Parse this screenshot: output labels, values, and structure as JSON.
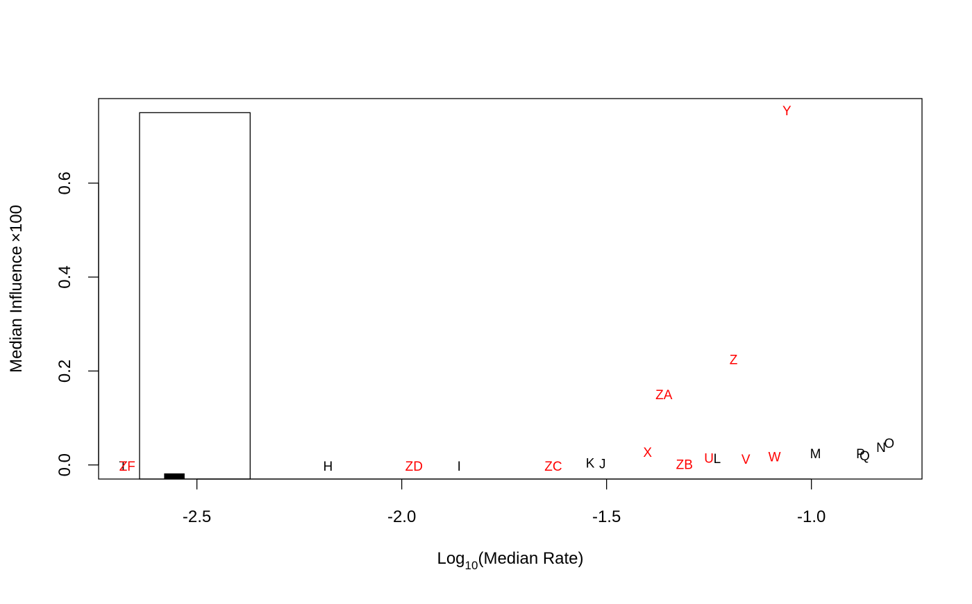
{
  "chart_data": {
    "type": "scatter",
    "title": "",
    "xlabel": {
      "prefix": "Log",
      "subscript": "10",
      "suffix": "(Median Rate)"
    },
    "ylabel": {
      "prefix": "Median Influence",
      "times": "×",
      "suffix": "100"
    },
    "xlim": [
      -2.74,
      -0.73
    ],
    "ylim": [
      -0.03,
      0.78
    ],
    "x_ticks": [
      -2.5,
      -2.0,
      -1.5,
      -1.0
    ],
    "x_tick_labels": [
      "-2.5",
      "-2.0",
      "-1.5",
      "-1.0"
    ],
    "y_ticks": [
      0.0,
      0.2,
      0.4,
      0.6
    ],
    "y_tick_labels": [
      "0.0",
      "0.2",
      "0.4",
      "0.6"
    ],
    "grid": false,
    "colors": {
      "black": "#000000",
      "red": "#ff0000"
    },
    "inset_histogram": {
      "x_range": [
        -2.64,
        -2.37
      ],
      "y_range": [
        -0.03,
        0.75
      ],
      "bar_fill": "#ffffff",
      "bar_stroke": "#000000",
      "marker": {
        "x_range": [
          -2.58,
          -2.53
        ],
        "y_range": [
          -0.03,
          -0.018
        ],
        "fill": "#000000"
      }
    },
    "points": [
      {
        "label": "T",
        "x": -2.68,
        "y": -0.002,
        "color": "#000000"
      },
      {
        "label": "ZF",
        "x": -2.67,
        "y": -0.002,
        "color": "#ff0000"
      },
      {
        "label": "H",
        "x": -2.18,
        "y": -0.002,
        "color": "#000000"
      },
      {
        "label": "ZD",
        "x": -1.97,
        "y": -0.002,
        "color": "#ff0000"
      },
      {
        "label": "I",
        "x": -1.86,
        "y": -0.002,
        "color": "#000000"
      },
      {
        "label": "ZC",
        "x": -1.63,
        "y": -0.002,
        "color": "#ff0000"
      },
      {
        "label": "K",
        "x": -1.54,
        "y": 0.005,
        "color": "#000000"
      },
      {
        "label": "J",
        "x": -1.51,
        "y": 0.003,
        "color": "#000000"
      },
      {
        "label": "X",
        "x": -1.4,
        "y": 0.028,
        "color": "#ff0000"
      },
      {
        "label": "ZA",
        "x": -1.36,
        "y": 0.15,
        "color": "#ff0000"
      },
      {
        "label": "ZB",
        "x": -1.31,
        "y": 0.002,
        "color": "#ff0000"
      },
      {
        "label": "U",
        "x": -1.25,
        "y": 0.015,
        "color": "#ff0000"
      },
      {
        "label": "L",
        "x": -1.23,
        "y": 0.014,
        "color": "#000000"
      },
      {
        "label": "Z",
        "x": -1.19,
        "y": 0.225,
        "color": "#ff0000"
      },
      {
        "label": "V",
        "x": -1.16,
        "y": 0.013,
        "color": "#ff0000"
      },
      {
        "label": "W",
        "x": -1.09,
        "y": 0.018,
        "color": "#ff0000"
      },
      {
        "label": "Y",
        "x": -1.06,
        "y": 0.755,
        "color": "#ff0000"
      },
      {
        "label": "M",
        "x": -0.99,
        "y": 0.025,
        "color": "#000000"
      },
      {
        "label": "P",
        "x": -0.88,
        "y": 0.025,
        "color": "#000000"
      },
      {
        "label": "Q",
        "x": -0.87,
        "y": 0.02,
        "color": "#000000"
      },
      {
        "label": "N",
        "x": -0.83,
        "y": 0.038,
        "color": "#000000"
      },
      {
        "label": "O",
        "x": -0.81,
        "y": 0.047,
        "color": "#000000"
      }
    ]
  }
}
